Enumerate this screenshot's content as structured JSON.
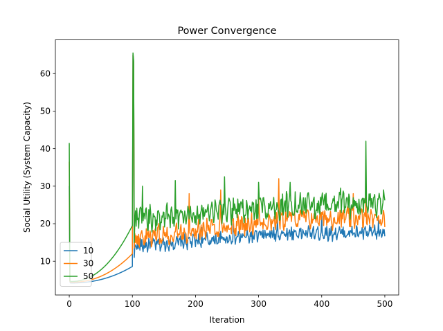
{
  "chart_data": {
    "type": "line",
    "title": "Power Convergence",
    "xlabel": "Iteration",
    "ylabel": "Social Utility (System Capacity)",
    "xlim": [
      -22,
      522
    ],
    "ylim": [
      1,
      69
    ],
    "xticks": [
      0,
      100,
      200,
      300,
      400,
      500
    ],
    "yticks": [
      10,
      20,
      30,
      40,
      50,
      60
    ],
    "grid": false,
    "legend_position": "lower-left",
    "series": [
      {
        "name": "10",
        "color": "#1f77b4",
        "model": {
          "start": 30,
          "init_min": 4.2,
          "rise_end": 8.6,
          "peak": 65,
          "drop": 11,
          "steady": [
            14.0,
            17.5
          ],
          "amp": 1.6,
          "spikes": [
            [
              210,
              19
            ],
            [
              260,
              20
            ],
            [
              330,
              21
            ],
            [
              400,
              22
            ],
            [
              490,
              21
            ]
          ]
        }
      },
      {
        "name": "30",
        "color": "#ff7f0e",
        "model": {
          "start": 36.5,
          "init_min": 4.4,
          "rise_end": 12.0,
          "peak": 65,
          "drop": 13.5,
          "steady": [
            16.0,
            21.5
          ],
          "amp": 2.4,
          "spikes": [
            [
              190,
              28
            ],
            [
              240,
              29
            ],
            [
              300,
              27.5
            ],
            [
              332,
              32
            ],
            [
              450,
              28
            ],
            [
              470,
              27
            ]
          ]
        }
      },
      {
        "name": "50",
        "color": "#2ca02c",
        "model": {
          "start": 41.5,
          "init_min": 4.6,
          "rise_end": 19.5,
          "peak": 65.5,
          "drop": 15,
          "steady": [
            21.0,
            25.0
          ],
          "amp": 2.8,
          "spikes": [
            [
              116,
              30
            ],
            [
              168,
              31.5
            ],
            [
              246,
              32.5
            ],
            [
              300,
              31
            ],
            [
              350,
              31
            ],
            [
              430,
              29.5
            ],
            [
              470,
              42
            ],
            [
              498,
              29
            ]
          ]
        }
      }
    ]
  }
}
